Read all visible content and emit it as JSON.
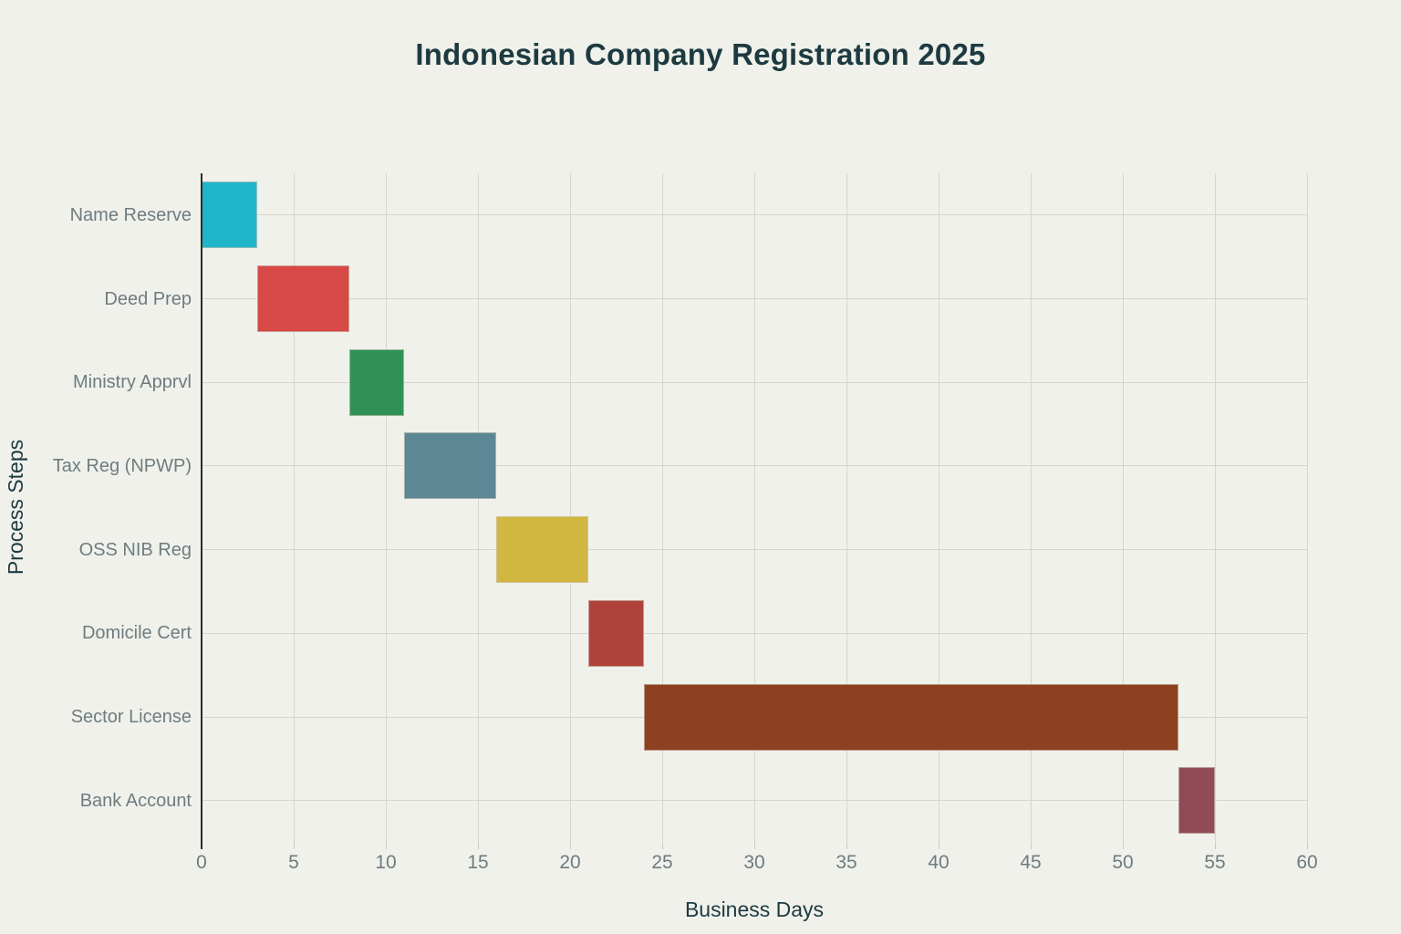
{
  "chart_data": {
    "type": "bar",
    "subtype": "gantt",
    "title": "Indonesian Company Registration 2025",
    "xlabel": "Business Days",
    "ylabel": "Process Steps",
    "xlim": [
      0,
      60
    ],
    "x_ticks": [
      0,
      5,
      10,
      15,
      20,
      25,
      30,
      35,
      40,
      45,
      50,
      55,
      60
    ],
    "grid": true,
    "legend": "none",
    "categories": [
      "Name Reserve",
      "Deed Prep",
      "Ministry Apprvl",
      "Tax Reg (NPWP)",
      "OSS NIB Reg",
      "Domicile Cert",
      "Sector License",
      "Bank Account"
    ],
    "series": [
      {
        "name": "Name Reserve",
        "start": 0,
        "end": 3,
        "duration_days": 3,
        "color": "#20b5c9"
      },
      {
        "name": "Deed Prep",
        "start": 3,
        "end": 8,
        "duration_days": 5,
        "color": "#d64946"
      },
      {
        "name": "Ministry Apprvl",
        "start": 8,
        "end": 11,
        "duration_days": 3,
        "color": "#2f9254"
      },
      {
        "name": "Tax Reg (NPWP)",
        "start": 11,
        "end": 16,
        "duration_days": 5,
        "color": "#5c8795"
      },
      {
        "name": "OSS NIB Reg",
        "start": 16,
        "end": 21,
        "duration_days": 5,
        "color": "#d1b740"
      },
      {
        "name": "Domicile Cert",
        "start": 21,
        "end": 24,
        "duration_days": 3,
        "color": "#b0423c"
      },
      {
        "name": "Sector License",
        "start": 24,
        "end": 53,
        "duration_days": 29,
        "color": "#8e4121"
      },
      {
        "name": "Bank Account",
        "start": 53,
        "end": 55,
        "duration_days": 2,
        "color": "#914b58"
      }
    ],
    "theme": {
      "background": "#f0f1eb",
      "title_color": "#1d3a40",
      "axis_title_color": "#1d3a40",
      "tick_label_color": "#6e7c80",
      "gridline_color": "#d6d6cf",
      "axis_line_color": "#2d2d2d",
      "minor_tick_color": "#c9c9c2"
    }
  }
}
